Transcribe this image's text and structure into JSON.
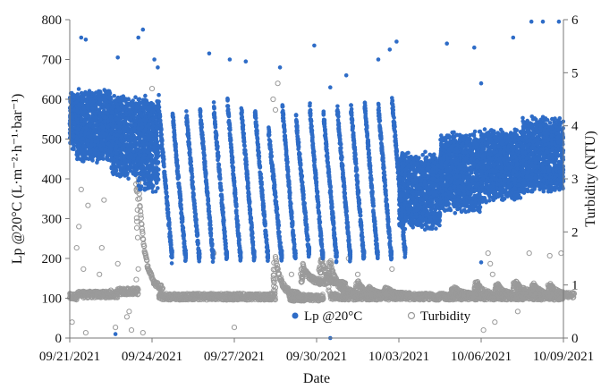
{
  "chart_data": {
    "type": "scatter",
    "title": "",
    "xlabel": "Date",
    "ylabel": "Lp @20°C (L·m⁻²·h⁻¹·bar⁻¹)",
    "y2label": "Turbidity (NTU)",
    "xlim": [
      "09/21/2021",
      "10/09/2021"
    ],
    "ylim": [
      0,
      800
    ],
    "y2lim": [
      0,
      6
    ],
    "x_ticks": [
      "09/21/2021",
      "09/24/2021",
      "09/27/2021",
      "09/30/2021",
      "10/03/2021",
      "10/06/2021",
      "10/09/2021"
    ],
    "y_ticks": [
      "0",
      "100",
      "200",
      "300",
      "400",
      "500",
      "600",
      "700",
      "800"
    ],
    "y2_ticks": [
      "0",
      "1",
      "2",
      "3",
      "4",
      "5",
      "6"
    ],
    "grid": false,
    "legend_position": "bottom-center",
    "series": [
      {
        "name": "Lp @20°C",
        "axis": "left",
        "color": "#2e6cc7",
        "marker": "filled-circle",
        "segments_description": "dense band values over time",
        "bands": [
          {
            "x0": "09/21/2021 00:00",
            "x1": "09/21/2021 06:00",
            "low": 470,
            "high": 620
          },
          {
            "x0": "09/21/2021 06:00",
            "x1": "09/22/2021 12:00",
            "low": 440,
            "high": 630
          },
          {
            "x0": "09/22/2021 12:00",
            "x1": "09/23/2021 12:00",
            "low": 400,
            "high": 615
          },
          {
            "x0": "09/23/2021 12:00",
            "x1": "09/24/2021 06:00",
            "low": 360,
            "high": 620
          },
          {
            "x0": "10/03/2021 00:00",
            "x1": "10/04/2021 12:00",
            "low": 270,
            "high": 470
          },
          {
            "x0": "10/04/2021 12:00",
            "x1": "10/06/2021 00:00",
            "low": 310,
            "high": 520
          },
          {
            "x0": "10/06/2021 00:00",
            "x1": "10/07/2021 12:00",
            "low": 340,
            "high": 530
          },
          {
            "x0": "10/07/2021 12:00",
            "x1": "10/09/2021 00:00",
            "low": 360,
            "high": 560
          }
        ],
        "daily_cycles": [
          {
            "start": "09/24/2021 06:00",
            "peak": 580,
            "trough": 200
          },
          {
            "start": "09/24/2021 18:00",
            "peak": 560,
            "trough": 200
          },
          {
            "start": "09/25/2021 06:00",
            "peak": 560,
            "trough": 200
          },
          {
            "start": "09/25/2021 18:00",
            "peak": 570,
            "trough": 200
          },
          {
            "start": "09/26/2021 06:00",
            "peak": 580,
            "trough": 200
          },
          {
            "start": "09/26/2021 18:00",
            "peak": 590,
            "trough": 200
          },
          {
            "start": "09/27/2021 06:00",
            "peak": 580,
            "trough": 200
          },
          {
            "start": "09/27/2021 18:00",
            "peak": 570,
            "trough": 200
          },
          {
            "start": "09/28/2021 06:00",
            "peak": 520,
            "trough": 200
          },
          {
            "start": "09/28/2021 18:00",
            "peak": 580,
            "trough": 200
          },
          {
            "start": "09/29/2021 06:00",
            "peak": 550,
            "trough": 210
          },
          {
            "start": "09/29/2021 18:00",
            "peak": 580,
            "trough": 200
          },
          {
            "start": "09/30/2021 06:00",
            "peak": 560,
            "trough": 200
          },
          {
            "start": "09/30/2021 18:00",
            "peak": 580,
            "trough": 200
          },
          {
            "start": "10/01/2021 06:00",
            "peak": 580,
            "trough": 200
          },
          {
            "start": "10/01/2021 18:00",
            "peak": 590,
            "trough": 200
          },
          {
            "start": "10/02/2021 06:00",
            "peak": 580,
            "trough": 200
          },
          {
            "start": "10/02/2021 18:00",
            "peak": 600,
            "trough": 210
          }
        ],
        "outliers": [
          {
            "x": "09/21/2021 10:00",
            "y": 755
          },
          {
            "x": "09/21/2021 14:00",
            "y": 750
          },
          {
            "x": "09/22/2021 18:00",
            "y": 705
          },
          {
            "x": "09/23/2021 16:00",
            "y": 775
          },
          {
            "x": "09/23/2021 12:00",
            "y": 755
          },
          {
            "x": "09/24/2021 02:00",
            "y": 700
          },
          {
            "x": "09/24/2021 05:00",
            "y": 680
          },
          {
            "x": "09/26/2021 02:00",
            "y": 715
          },
          {
            "x": "09/26/2021 20:00",
            "y": 700
          },
          {
            "x": "09/27/2021 10:00",
            "y": 695
          },
          {
            "x": "09/28/2021 16:00",
            "y": 680
          },
          {
            "x": "09/29/2021 22:00",
            "y": 735
          },
          {
            "x": "09/30/2021 12:00",
            "y": 630
          },
          {
            "x": "10/01/2021 02:00",
            "y": 660
          },
          {
            "x": "10/02/2021 06:00",
            "y": 700
          },
          {
            "x": "10/02/2021 16:00",
            "y": 725
          },
          {
            "x": "10/02/2021 22:00",
            "y": 745
          },
          {
            "x": "10/04/2021 18:00",
            "y": 740
          },
          {
            "x": "10/05/2021 18:00",
            "y": 730
          },
          {
            "x": "10/06/2021 00:00",
            "y": 640
          },
          {
            "x": "10/06/2021 00:00",
            "y": 190
          },
          {
            "x": "10/07/2021 04:00",
            "y": 755
          },
          {
            "x": "10/07/2021 20:00",
            "y": 795
          },
          {
            "x": "10/08/2021 06:00",
            "y": 795
          },
          {
            "x": "10/08/2021 20:00",
            "y": 795
          },
          {
            "x": "09/30/2021 12:00",
            "y": 0
          },
          {
            "x": "09/22/2021 16:00",
            "y": 10
          }
        ]
      },
      {
        "name": "Turbidity",
        "axis": "right",
        "color": "#9a9a9a",
        "marker": "open-circle",
        "baseline_segments": [
          {
            "x0": "09/21/2021 00:00",
            "x1": "09/21/2021 06:00",
            "y": 0.78
          },
          {
            "x0": "09/21/2021 06:00",
            "x1": "09/22/2021 18:00",
            "y": 0.82
          },
          {
            "x0": "09/22/2021 18:00",
            "x1": "09/23/2021 12:00",
            "y": 0.88
          },
          {
            "x0": "09/24/2021 06:00",
            "x1": "09/28/2021 12:00",
            "y": 0.78
          },
          {
            "x0": "09/29/2021 00:00",
            "x1": "09/30/2021 06:00",
            "y": 0.76
          },
          {
            "x0": "09/30/2021 12:00",
            "x1": "10/09/2021 00:00",
            "y": 0.78
          }
        ],
        "spikes": [
          {
            "x": "09/23/2021 12:00",
            "peak": 3.0,
            "decay_to": 0.9
          },
          {
            "x": "09/28/2021 12:00",
            "peak": 1.5,
            "decay_to": 0.8
          },
          {
            "x": "09/29/2021 12:00",
            "peak": 1.35,
            "decay_to": 1.05
          },
          {
            "x": "09/30/2021 04:00",
            "peak": 1.5,
            "decay_to": 1.0
          },
          {
            "x": "09/30/2021 12:00",
            "peak": 1.45,
            "decay_to": 0.85
          },
          {
            "x": "10/01/2021 12:00",
            "peak": 1.05,
            "decay_to": 0.8
          },
          {
            "x": "10/01/2021 22:00",
            "peak": 0.95,
            "decay_to": 0.8
          },
          {
            "x": "10/02/2021 12:00",
            "peak": 0.95,
            "decay_to": 0.8
          },
          {
            "x": "10/05/2021 00:00",
            "peak": 0.95,
            "decay_to": 0.8
          },
          {
            "x": "10/05/2021 20:00",
            "peak": 1.05,
            "decay_to": 0.8
          },
          {
            "x": "10/06/2021 14:00",
            "peak": 1.0,
            "decay_to": 0.8
          },
          {
            "x": "10/07/2021 06:00",
            "peak": 1.05,
            "decay_to": 0.85
          },
          {
            "x": "10/07/2021 22:00",
            "peak": 1.0,
            "decay_to": 0.8
          },
          {
            "x": "10/08/2021 12:00",
            "peak": 1.0,
            "decay_to": 0.8
          }
        ],
        "outliers": [
          {
            "x": "09/21/2021 02:00",
            "y": 0.3
          },
          {
            "x": "09/21/2021 06:00",
            "y": 1.7
          },
          {
            "x": "09/21/2021 08:00",
            "y": 2.1
          },
          {
            "x": "09/21/2021 10:00",
            "y": 2.8
          },
          {
            "x": "09/21/2021 12:00",
            "y": 1.3
          },
          {
            "x": "09/21/2021 14:00",
            "y": 0.1
          },
          {
            "x": "09/21/2021 16:00",
            "y": 2.5
          },
          {
            "x": "09/22/2021 02:00",
            "y": 1.2
          },
          {
            "x": "09/22/2021 04:00",
            "y": 1.7
          },
          {
            "x": "09/22/2021 06:00",
            "y": 2.6
          },
          {
            "x": "09/22/2021 12:00",
            "y": 0.9
          },
          {
            "x": "09/22/2021 16:00",
            "y": 0.2
          },
          {
            "x": "09/22/2021 18:00",
            "y": 1.4
          },
          {
            "x": "09/23/2021 02:00",
            "y": 0.4
          },
          {
            "x": "09/23/2021 04:00",
            "y": 0.5
          },
          {
            "x": "09/23/2021 06:00",
            "y": 0.15
          },
          {
            "x": "09/23/2021 08:00",
            "y": 3.5
          },
          {
            "x": "09/23/2021 10:00",
            "y": 2.9
          },
          {
            "x": "09/23/2021 16:00",
            "y": 0.1
          },
          {
            "x": "09/24/2021 00:00",
            "y": 4.7
          },
          {
            "x": "09/27/2021 00:00",
            "y": 0.2
          },
          {
            "x": "09/28/2021 12:00",
            "y": 4.3
          },
          {
            "x": "09/28/2021 10:00",
            "y": 4.5
          },
          {
            "x": "09/28/2021 14:00",
            "y": 4.8
          },
          {
            "x": "09/26/2021 06:00",
            "y": 1.6
          },
          {
            "x": "09/29/2021 02:00",
            "y": 1.2
          },
          {
            "x": "10/01/2021 04:00",
            "y": 1.5
          },
          {
            "x": "10/01/2021 12:00",
            "y": 1.2
          },
          {
            "x": "10/02/2021 18:00",
            "y": 1.3
          },
          {
            "x": "10/04/2021 20:00",
            "y": 2.8
          },
          {
            "x": "10/05/2021 12:00",
            "y": 2.7
          },
          {
            "x": "10/06/2021 02:00",
            "y": 0.15
          },
          {
            "x": "10/06/2021 06:00",
            "y": 1.6
          },
          {
            "x": "10/06/2021 08:00",
            "y": 1.4
          },
          {
            "x": "10/06/2021 10:00",
            "y": 1.2
          },
          {
            "x": "10/06/2021 12:00",
            "y": 0.3
          },
          {
            "x": "10/07/2021 18:00",
            "y": 1.6
          },
          {
            "x": "10/07/2021 08:00",
            "y": 0.5
          },
          {
            "x": "10/08/2021 12:00",
            "y": 1.55
          },
          {
            "x": "10/08/2021 22:00",
            "y": 1.6
          }
        ]
      }
    ]
  },
  "legend": {
    "lp_label": "Lp @20°C",
    "turbidity_label": "Turbidity"
  },
  "axes": {
    "x_title": "Date",
    "y_title": "Lp @20°C (L·m⁻²·h⁻¹·bar⁻¹)",
    "y2_title": "Turbidity (NTU)"
  },
  "colors": {
    "lp": "#2e6cc7",
    "turbidity": "#9a9a9a",
    "axis": "#777777"
  }
}
